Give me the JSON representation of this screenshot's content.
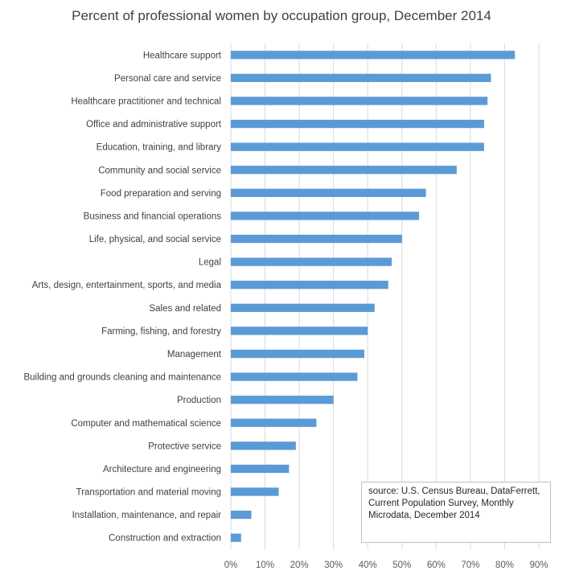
{
  "chart_data": {
    "type": "bar",
    "orientation": "horizontal",
    "title": "Percent of professional women by occupation group, December 2014",
    "categories": [
      "Healthcare support",
      "Personal care and service",
      "Healthcare practitioner and technical",
      "Office and administrative support",
      "Education, training, and library",
      "Community and social service",
      "Food preparation and serving",
      "Business and financial operations",
      "Life, physical, and social service",
      "Legal",
      "Arts, design, entertainment, sports, and media",
      "Sales and related",
      "Farming, fishing, and forestry",
      "Management",
      "Building and grounds cleaning and maintenance",
      "Production",
      "Computer and mathematical science",
      "Protective service",
      "Architecture and engineering",
      "Transportation and material moving",
      "Installation, maintenance, and repair",
      "Construction and extraction"
    ],
    "values": [
      83,
      76,
      75,
      74,
      74,
      66,
      57,
      55,
      50,
      47,
      46,
      42,
      40,
      39,
      37,
      30,
      25,
      19,
      17,
      14,
      6,
      3
    ],
    "xlim": [
      0,
      90
    ],
    "xticks": [
      "0%",
      "10%",
      "20%",
      "30%",
      "40%",
      "50%",
      "60%",
      "70%",
      "80%",
      "90%"
    ],
    "grid": true,
    "bar_color": "#5b9bd5",
    "annotation": "source: U.S. Census Bureau, DataFerrett, Current Population Survey, Monthly Microdata, December 2014"
  }
}
